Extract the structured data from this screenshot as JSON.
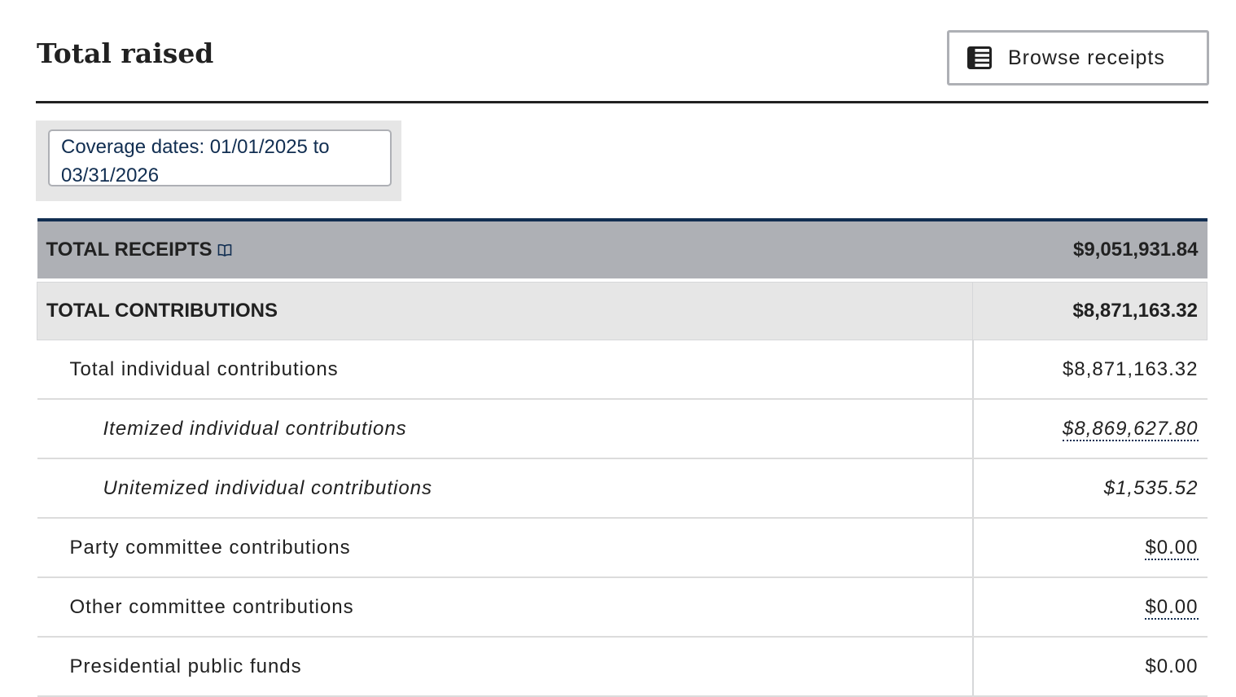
{
  "header": {
    "title": "Total raised",
    "browse_button": "Browse receipts",
    "browse_icon": "table-icon"
  },
  "coverage": {
    "text": "Coverage dates: 01/01/2025 to 03/31/2026"
  },
  "table": {
    "total_receipts": {
      "label": "TOTAL RECEIPTS",
      "icon": "book-icon",
      "value": "$9,051,931.84"
    },
    "total_contributions": {
      "label": "TOTAL CONTRIBUTIONS",
      "value": "$8,871,163.32"
    },
    "rows": [
      {
        "label": "Total individual contributions",
        "value": "$8,871,163.32"
      },
      {
        "label": "Itemized individual contributions",
        "value": "$8,869,627.80"
      },
      {
        "label": "Unitemized individual contributions",
        "value": "$1,535.52"
      },
      {
        "label": "Party committee contributions",
        "value": "$0.00"
      },
      {
        "label": "Other committee contributions",
        "value": "$0.00"
      },
      {
        "label": "Presidential public funds",
        "value": "$0.00"
      }
    ]
  },
  "colors": {
    "navy": "#112e51",
    "header_gray": "#aeb0b5",
    "light_gray": "#e6e6e6"
  }
}
